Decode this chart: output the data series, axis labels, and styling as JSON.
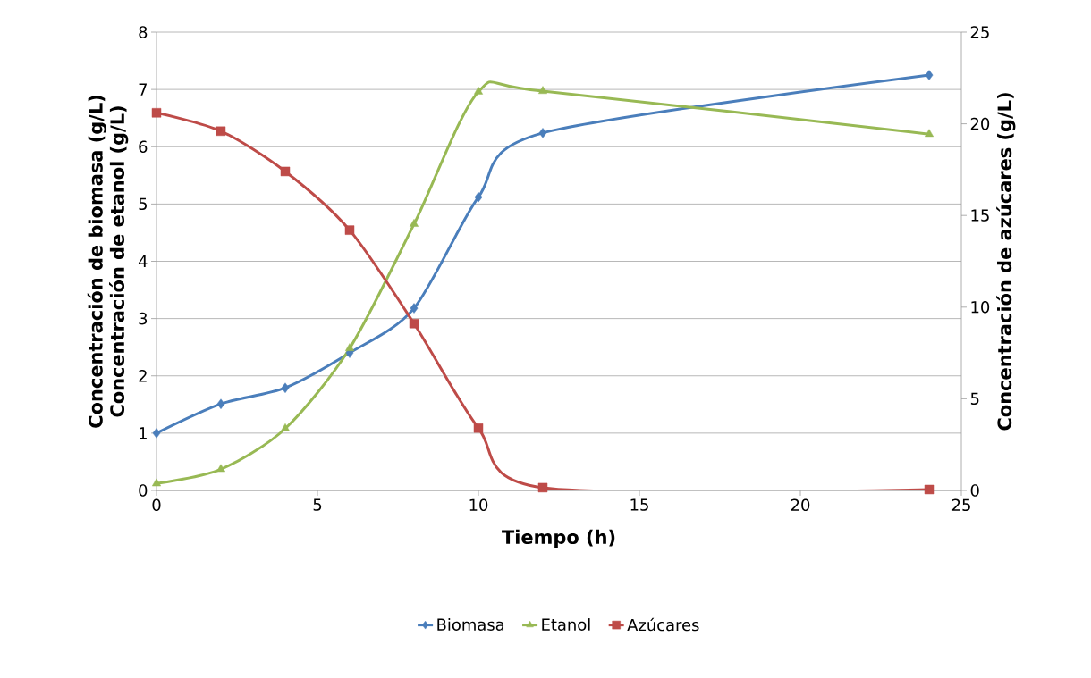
{
  "chart_data": {
    "type": "line",
    "xlabel": "Tiempo (h)",
    "ylabel": [
      "Concentración de biomasa (g/L)",
      "Concentración de etanol (g/L)"
    ],
    "y2label": "Concentración de azúcares (g/L)",
    "x": [
      0,
      2,
      4,
      6,
      8,
      10,
      12,
      24
    ],
    "series": [
      {
        "name": "Biomasa",
        "color": "#4a7ebb",
        "marker": "diamond",
        "values": [
          1.0,
          1.51,
          1.79,
          2.4,
          3.18,
          5.12,
          6.24,
          7.25
        ]
      },
      {
        "name": "Etanol",
        "color": "#98b954",
        "marker": "triangle",
        "values": [
          0.12,
          0.37,
          1.08,
          2.48,
          4.65,
          6.96,
          6.97,
          6.22
        ]
      },
      {
        "name": "Azúcares",
        "color": "#be4b48",
        "marker": "square",
        "axis": "y2",
        "values": [
          20.6,
          19.6,
          17.4,
          14.2,
          9.1,
          3.4,
          0.15,
          0.05
        ]
      }
    ],
    "xlim": [
      0,
      25
    ],
    "xticks": [
      0,
      5,
      10,
      15,
      20,
      25
    ],
    "ylim": [
      0,
      8
    ],
    "yticks": [
      0,
      1,
      2,
      3,
      4,
      5,
      6,
      7,
      8
    ],
    "y2lim": [
      0,
      25
    ],
    "y2ticks": [
      0,
      5,
      10,
      15,
      20,
      25
    ],
    "grid": "y",
    "legend": "bottom",
    "line_style": "solid"
  }
}
